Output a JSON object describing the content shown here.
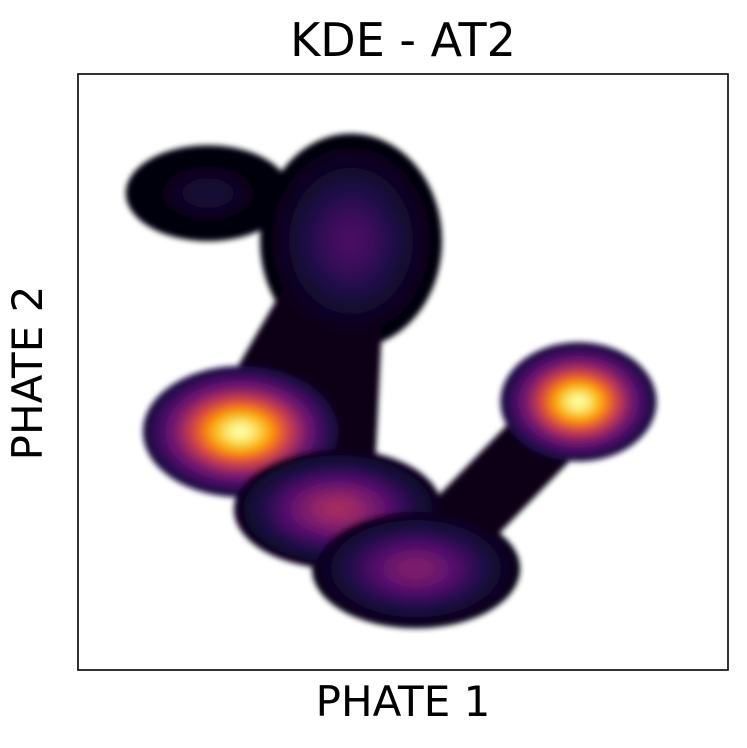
{
  "chart_data": {
    "type": "heatmap",
    "title": "KDE - AT2",
    "xlabel": "PHATE 1",
    "ylabel": "PHATE 2",
    "ticks": "none",
    "grid": false,
    "legend": "none",
    "colormap": "inferno",
    "colors": {
      "background": "#ffffff",
      "frame": "#000000",
      "low": "#000004",
      "mid": "#781c6d",
      "high": "#fcffa4"
    },
    "density_components": [
      {
        "name": "upper-left blob",
        "cx": 0.2,
        "cy": 0.8,
        "sx": 0.055,
        "sy": 0.035,
        "weight": 0.1
      },
      {
        "name": "upper stem",
        "cx": 0.42,
        "cy": 0.72,
        "sx": 0.07,
        "sy": 0.09,
        "weight": 0.22
      },
      {
        "name": "left hotspot",
        "cx": 0.25,
        "cy": 0.4,
        "sx": 0.075,
        "sy": 0.055,
        "weight": 1.0
      },
      {
        "name": "diagonal ridge",
        "cx": 0.4,
        "cy": 0.27,
        "sx": 0.08,
        "sy": 0.05,
        "weight": 0.45
      },
      {
        "name": "lower arc",
        "cx": 0.52,
        "cy": 0.17,
        "sx": 0.08,
        "sy": 0.05,
        "weight": 0.35
      },
      {
        "name": "right hotspot",
        "cx": 0.77,
        "cy": 0.45,
        "sx": 0.06,
        "sy": 0.05,
        "weight": 1.0
      }
    ]
  }
}
